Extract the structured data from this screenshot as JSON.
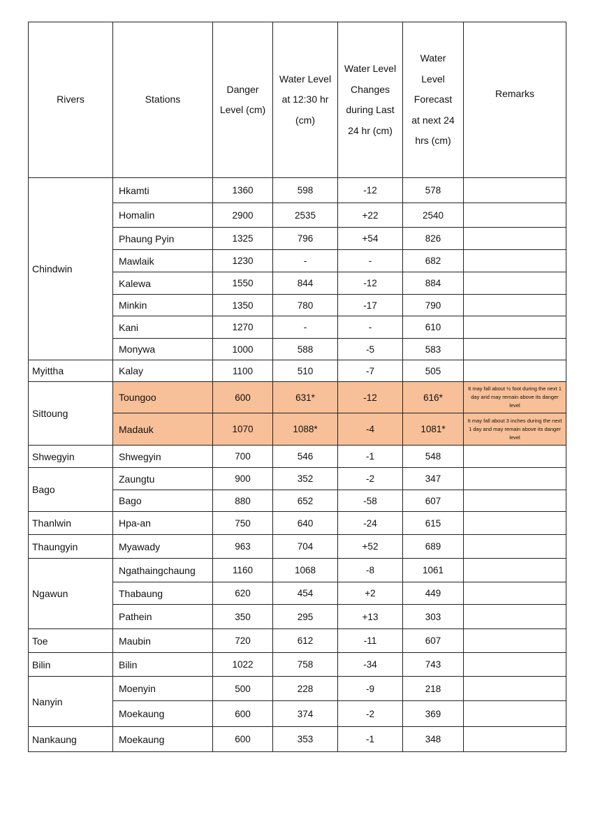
{
  "colors": {
    "highlight": "#f8c098"
  },
  "headers": {
    "river": "Rivers",
    "station": "Stations",
    "danger": "Danger Level (cm)",
    "level": "Water Level at 12:30 hr (cm)",
    "change": "Water Level Changes during Last 24 hr (cm)",
    "forecast": "Water Level Forecast at next 24 hrs (cm)",
    "remarks": "Remarks"
  },
  "rivers": [
    {
      "name": "Chindwin",
      "stations": [
        {
          "name": "Hkamti",
          "danger": "1360",
          "level": "598",
          "change": "-12",
          "forecast": "578",
          "remarks": ""
        },
        {
          "name": "Homalin",
          "danger": "2900",
          "level": "2535",
          "change": "+22",
          "forecast": "2540",
          "remarks": ""
        },
        {
          "name": "Phaung Pyin",
          "danger": "1325",
          "level": "796",
          "change": "+54",
          "forecast": "826",
          "remarks": ""
        },
        {
          "name": "Mawlaik",
          "danger": "1230",
          "level": "-",
          "change": "-",
          "forecast": "682",
          "remarks": ""
        },
        {
          "name": "Kalewa",
          "danger": "1550",
          "level": "844",
          "change": "-12",
          "forecast": "884",
          "remarks": ""
        },
        {
          "name": "Minkin",
          "danger": "1350",
          "level": "780",
          "change": "-17",
          "forecast": "790",
          "remarks": ""
        },
        {
          "name": "Kani",
          "danger": "1270",
          "level": "-",
          "change": "-",
          "forecast": "610",
          "remarks": ""
        },
        {
          "name": "Monywa",
          "danger": "1000",
          "level": "588",
          "change": "-5",
          "forecast": "583",
          "remarks": ""
        }
      ]
    },
    {
      "name": "Myittha",
      "stations": [
        {
          "name": "Kalay",
          "danger": "1100",
          "level": "510",
          "change": "-7",
          "forecast": "505",
          "remarks": ""
        }
      ]
    },
    {
      "name": "Sittoung",
      "stations": [
        {
          "name": "Toungoo",
          "danger": "600",
          "level": "631*",
          "change": "-12",
          "forecast": "616*",
          "remarks": "It may fall about ½ foot during the next 1 day and may remain above its danger level",
          "highlight": true
        },
        {
          "name": "Madauk",
          "danger": "1070",
          "level": "1088*",
          "change": "-4",
          "forecast": "1081*",
          "remarks": "It may fall about 3 inches during the next 1 day and may remain above its danger level",
          "highlight": true
        }
      ]
    },
    {
      "name": "Shwegyin",
      "stations": [
        {
          "name": "Shwegyin",
          "danger": "700",
          "level": "546",
          "change": "-1",
          "forecast": "548",
          "remarks": ""
        }
      ]
    },
    {
      "name": "Bago",
      "stations": [
        {
          "name": "Zaungtu",
          "danger": "900",
          "level": "352",
          "change": "-2",
          "forecast": "347",
          "remarks": ""
        },
        {
          "name": "Bago",
          "danger": "880",
          "level": "652",
          "change": "-58",
          "forecast": "607",
          "remarks": ""
        }
      ]
    },
    {
      "name": "Thanlwin",
      "stations": [
        {
          "name": "Hpa-an",
          "danger": "750",
          "level": "640",
          "change": "-24",
          "forecast": "615",
          "remarks": ""
        }
      ]
    },
    {
      "name": "Thaungyin",
      "stations": [
        {
          "name": "Myawady",
          "danger": "963",
          "level": "704",
          "change": "+52",
          "forecast": "689",
          "remarks": ""
        }
      ]
    },
    {
      "name": "Ngawun",
      "stations": [
        {
          "name": "Ngathaingchaung",
          "danger": "1160",
          "level": "1068",
          "change": "-8",
          "forecast": "1061",
          "remarks": ""
        },
        {
          "name": "Thabaung",
          "danger": "620",
          "level": "454",
          "change": "+2",
          "forecast": "449",
          "remarks": ""
        },
        {
          "name": "Pathein",
          "danger": "350",
          "level": "295",
          "change": "+13",
          "forecast": "303",
          "remarks": ""
        }
      ]
    },
    {
      "name": "Toe",
      "stations": [
        {
          "name": "Maubin",
          "danger": "720",
          "level": "612",
          "change": "-11",
          "forecast": "607",
          "remarks": ""
        }
      ]
    },
    {
      "name": "Bilin",
      "stations": [
        {
          "name": "Bilin",
          "danger": "1022",
          "level": "758",
          "change": "-34",
          "forecast": "743",
          "remarks": ""
        }
      ]
    },
    {
      "name": "Nanyin",
      "stations": [
        {
          "name": "Moenyin",
          "danger": "500",
          "level": "228",
          "change": "-9",
          "forecast": "218",
          "remarks": ""
        },
        {
          "name": "Moekaung",
          "danger": "600",
          "level": "374",
          "change": "-2",
          "forecast": "369",
          "remarks": ""
        }
      ]
    },
    {
      "name": "Nankaung",
      "stations": [
        {
          "name": "Moekaung",
          "danger": "600",
          "level": "353",
          "change": "-1",
          "forecast": "348",
          "remarks": ""
        }
      ]
    }
  ]
}
